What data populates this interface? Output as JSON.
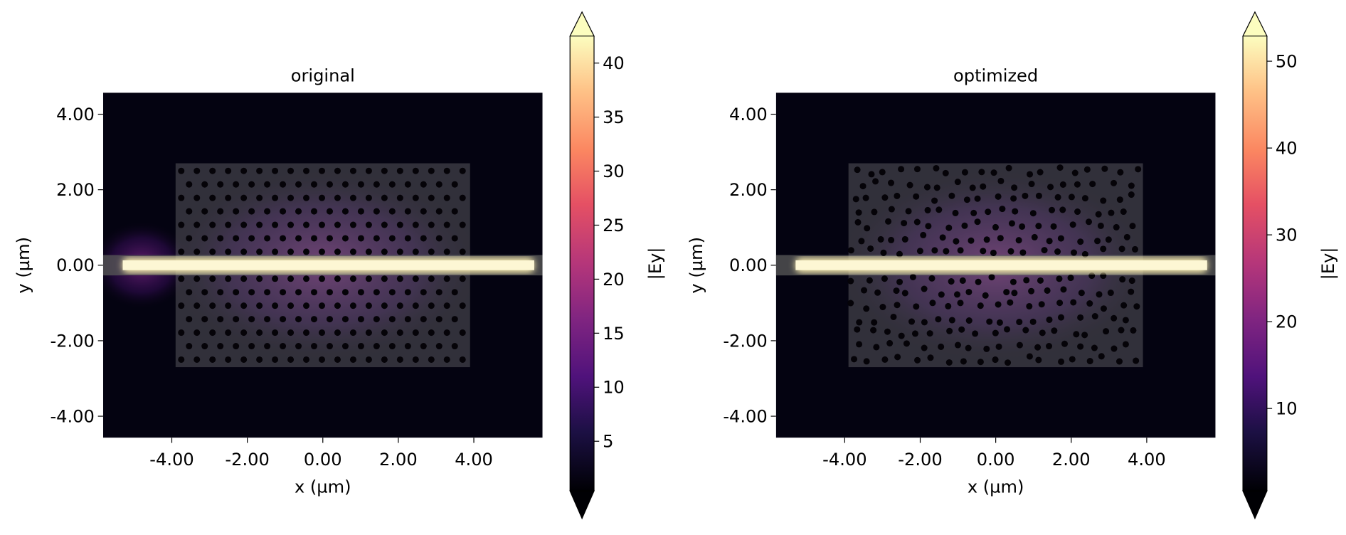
{
  "chart_data": [
    {
      "type": "heatmap",
      "title": "original",
      "xlabel": "x (µm)",
      "ylabel": "y (µm)",
      "xlim": [
        -5.82,
        5.82
      ],
      "ylim": [
        -4.57,
        4.57
      ],
      "xticks": [
        {
          "value": -4,
          "label": "-4.00"
        },
        {
          "value": -2,
          "label": "-2.00"
        },
        {
          "value": 0,
          "label": "0.00"
        },
        {
          "value": 2,
          "label": "2.00"
        },
        {
          "value": 4,
          "label": "4.00"
        }
      ],
      "yticks": [
        {
          "value": -4,
          "label": "-4.00"
        },
        {
          "value": -2,
          "label": "-2.00"
        },
        {
          "value": 0,
          "label": "0.00"
        },
        {
          "value": 2,
          "label": "2.00"
        },
        {
          "value": 4,
          "label": "4.00"
        }
      ],
      "colorbar": {
        "label": "|Ey|",
        "colormap": "magma",
        "extend": "both",
        "lim": [
          0.4,
          42.5
        ],
        "ticks": [
          5,
          10,
          15,
          20,
          25,
          30,
          35,
          40
        ]
      }
    },
    {
      "type": "heatmap",
      "title": "optimized",
      "xlabel": "x (µm)",
      "ylabel": "y (µm)",
      "xlim": [
        -5.82,
        5.82
      ],
      "ylim": [
        -4.57,
        4.57
      ],
      "xticks": [
        {
          "value": -4,
          "label": "-4.00"
        },
        {
          "value": -2,
          "label": "-2.00"
        },
        {
          "value": 0,
          "label": "0.00"
        },
        {
          "value": 2,
          "label": "2.00"
        },
        {
          "value": 4,
          "label": "4.00"
        }
      ],
      "yticks": [
        {
          "value": -4,
          "label": "-4.00"
        },
        {
          "value": -2,
          "label": "-2.00"
        },
        {
          "value": 0,
          "label": "0.00"
        },
        {
          "value": 2,
          "label": "2.00"
        },
        {
          "value": 4,
          "label": "4.00"
        }
      ],
      "colorbar": {
        "label": "|Ey|",
        "colormap": "magma",
        "extend": "both",
        "lim": [
          0.5,
          52.9
        ],
        "ticks": [
          10,
          20,
          30,
          40,
          50
        ]
      }
    }
  ]
}
